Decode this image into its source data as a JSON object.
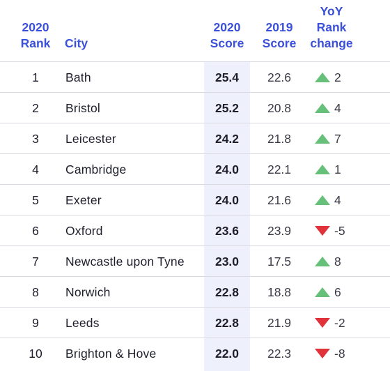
{
  "header": {
    "rank_year": "2020",
    "rank_label": "Rank",
    "city_label": "City",
    "score2020_year": "2020",
    "score2020_label": "Score",
    "score2019_year": "2019",
    "score2019_label": "Score",
    "yoy_line1": "YoY",
    "yoy_line2": "Rank",
    "yoy_line3": "change"
  },
  "colors": {
    "header_text": "#3b50d8",
    "highlight_column": "#eef1fc",
    "up_arrow": "#66c07a",
    "down_arrow": "#e0323a"
  },
  "rows": [
    {
      "rank": "1",
      "city": "Bath",
      "score2020": "25.4",
      "score2019": "22.6",
      "direction": "up",
      "change": "2"
    },
    {
      "rank": "2",
      "city": "Bristol",
      "score2020": "25.2",
      "score2019": "20.8",
      "direction": "up",
      "change": "4"
    },
    {
      "rank": "3",
      "city": "Leicester",
      "score2020": "24.2",
      "score2019": "21.8",
      "direction": "up",
      "change": "7"
    },
    {
      "rank": "4",
      "city": "Cambridge",
      "score2020": "24.0",
      "score2019": "22.1",
      "direction": "up",
      "change": "1"
    },
    {
      "rank": "5",
      "city": "Exeter",
      "score2020": "24.0",
      "score2019": "21.6",
      "direction": "up",
      "change": "4"
    },
    {
      "rank": "6",
      "city": "Oxford",
      "score2020": "23.6",
      "score2019": "23.9",
      "direction": "down",
      "change": "-5"
    },
    {
      "rank": "7",
      "city": "Newcastle upon Tyne",
      "score2020": "23.0",
      "score2019": "17.5",
      "direction": "up",
      "change": "8"
    },
    {
      "rank": "8",
      "city": "Norwich",
      "score2020": "22.8",
      "score2019": "18.8",
      "direction": "up",
      "change": "6"
    },
    {
      "rank": "9",
      "city": "Leeds",
      "score2020": "22.8",
      "score2019": "21.9",
      "direction": "down",
      "change": "-2"
    },
    {
      "rank": "10",
      "city": "Brighton & Hove",
      "score2020": "22.0",
      "score2019": "22.3",
      "direction": "down",
      "change": "-8"
    }
  ]
}
